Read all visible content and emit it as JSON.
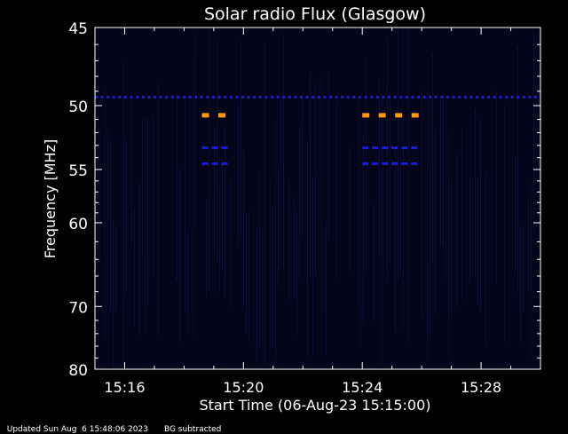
{
  "chart_data": {
    "type": "heatmap",
    "title": "Solar radio Flux (Glasgow)",
    "xlabel": "Start Time (06-Aug-23 15:15:00)",
    "ylabel": "Frequency [MHz]",
    "x_unit": "minutes past 15:15:00",
    "xlim": [
      0,
      15
    ],
    "ylim": [
      45,
      80
    ],
    "x_ticks": [
      {
        "value": 1,
        "label": "15:16"
      },
      {
        "value": 5,
        "label": "15:20"
      },
      {
        "value": 9,
        "label": "15:24"
      },
      {
        "value": 13,
        "label": "15:28"
      }
    ],
    "y_ticks": [
      {
        "value": 45,
        "label": "45"
      },
      {
        "value": 50,
        "label": "50"
      },
      {
        "value": 55,
        "label": "55"
      },
      {
        "value": 60,
        "label": "60"
      },
      {
        "value": 70,
        "label": "70"
      },
      {
        "value": 80,
        "label": "80"
      }
    ],
    "background_color": "#05051a",
    "features": [
      {
        "kind": "dashed-band",
        "freq": 49.4,
        "x_start": 0,
        "x_end": 15,
        "color": "#2020d0"
      },
      {
        "kind": "dashed-band",
        "freq": 50.7,
        "x_start": 3.6,
        "x_end": 4.5,
        "color": "#ff9a00"
      },
      {
        "kind": "dashed-band",
        "freq": 50.7,
        "x_start": 9.0,
        "x_end": 10.9,
        "color": "#ff9a00"
      },
      {
        "kind": "dashed-band",
        "freq": 53.2,
        "x_start": 3.6,
        "x_end": 4.5,
        "color": "#1a1ae0"
      },
      {
        "kind": "dashed-band",
        "freq": 53.2,
        "x_start": 9.0,
        "x_end": 10.9,
        "color": "#1a1ae0"
      },
      {
        "kind": "dashed-band",
        "freq": 54.5,
        "x_start": 3.6,
        "x_end": 4.5,
        "color": "#1a1ae0"
      },
      {
        "kind": "dashed-band",
        "freq": 54.5,
        "x_start": 9.0,
        "x_end": 10.9,
        "color": "#1a1ae0"
      }
    ]
  },
  "footer": {
    "updated": "Updated Sun Aug  6 15:48:06 2023",
    "note": "BG subtracted"
  }
}
